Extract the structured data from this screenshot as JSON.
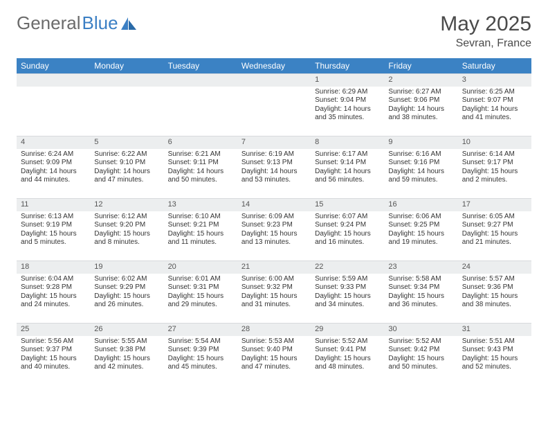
{
  "logo": {
    "text1": "General",
    "text2": "Blue"
  },
  "title": "May 2025",
  "location": "Sevran, France",
  "weekdays": [
    "Sunday",
    "Monday",
    "Tuesday",
    "Wednesday",
    "Thursday",
    "Friday",
    "Saturday"
  ],
  "colors": {
    "header_bg": "#3b82c4",
    "header_text": "#ffffff",
    "daynum_bg": "#eceeef",
    "body_text": "#333333",
    "title_text": "#4a4a4a",
    "logo_gray": "#6b6b6b",
    "logo_blue": "#3b7fc4"
  },
  "weeks": [
    [
      {
        "n": "",
        "sr": "",
        "ss": "",
        "dl": ""
      },
      {
        "n": "",
        "sr": "",
        "ss": "",
        "dl": ""
      },
      {
        "n": "",
        "sr": "",
        "ss": "",
        "dl": ""
      },
      {
        "n": "",
        "sr": "",
        "ss": "",
        "dl": ""
      },
      {
        "n": "1",
        "sr": "Sunrise: 6:29 AM",
        "ss": "Sunset: 9:04 PM",
        "dl": "Daylight: 14 hours and 35 minutes."
      },
      {
        "n": "2",
        "sr": "Sunrise: 6:27 AM",
        "ss": "Sunset: 9:06 PM",
        "dl": "Daylight: 14 hours and 38 minutes."
      },
      {
        "n": "3",
        "sr": "Sunrise: 6:25 AM",
        "ss": "Sunset: 9:07 PM",
        "dl": "Daylight: 14 hours and 41 minutes."
      }
    ],
    [
      {
        "n": "4",
        "sr": "Sunrise: 6:24 AM",
        "ss": "Sunset: 9:09 PM",
        "dl": "Daylight: 14 hours and 44 minutes."
      },
      {
        "n": "5",
        "sr": "Sunrise: 6:22 AM",
        "ss": "Sunset: 9:10 PM",
        "dl": "Daylight: 14 hours and 47 minutes."
      },
      {
        "n": "6",
        "sr": "Sunrise: 6:21 AM",
        "ss": "Sunset: 9:11 PM",
        "dl": "Daylight: 14 hours and 50 minutes."
      },
      {
        "n": "7",
        "sr": "Sunrise: 6:19 AM",
        "ss": "Sunset: 9:13 PM",
        "dl": "Daylight: 14 hours and 53 minutes."
      },
      {
        "n": "8",
        "sr": "Sunrise: 6:17 AM",
        "ss": "Sunset: 9:14 PM",
        "dl": "Daylight: 14 hours and 56 minutes."
      },
      {
        "n": "9",
        "sr": "Sunrise: 6:16 AM",
        "ss": "Sunset: 9:16 PM",
        "dl": "Daylight: 14 hours and 59 minutes."
      },
      {
        "n": "10",
        "sr": "Sunrise: 6:14 AM",
        "ss": "Sunset: 9:17 PM",
        "dl": "Daylight: 15 hours and 2 minutes."
      }
    ],
    [
      {
        "n": "11",
        "sr": "Sunrise: 6:13 AM",
        "ss": "Sunset: 9:19 PM",
        "dl": "Daylight: 15 hours and 5 minutes."
      },
      {
        "n": "12",
        "sr": "Sunrise: 6:12 AM",
        "ss": "Sunset: 9:20 PM",
        "dl": "Daylight: 15 hours and 8 minutes."
      },
      {
        "n": "13",
        "sr": "Sunrise: 6:10 AM",
        "ss": "Sunset: 9:21 PM",
        "dl": "Daylight: 15 hours and 11 minutes."
      },
      {
        "n": "14",
        "sr": "Sunrise: 6:09 AM",
        "ss": "Sunset: 9:23 PM",
        "dl": "Daylight: 15 hours and 13 minutes."
      },
      {
        "n": "15",
        "sr": "Sunrise: 6:07 AM",
        "ss": "Sunset: 9:24 PM",
        "dl": "Daylight: 15 hours and 16 minutes."
      },
      {
        "n": "16",
        "sr": "Sunrise: 6:06 AM",
        "ss": "Sunset: 9:25 PM",
        "dl": "Daylight: 15 hours and 19 minutes."
      },
      {
        "n": "17",
        "sr": "Sunrise: 6:05 AM",
        "ss": "Sunset: 9:27 PM",
        "dl": "Daylight: 15 hours and 21 minutes."
      }
    ],
    [
      {
        "n": "18",
        "sr": "Sunrise: 6:04 AM",
        "ss": "Sunset: 9:28 PM",
        "dl": "Daylight: 15 hours and 24 minutes."
      },
      {
        "n": "19",
        "sr": "Sunrise: 6:02 AM",
        "ss": "Sunset: 9:29 PM",
        "dl": "Daylight: 15 hours and 26 minutes."
      },
      {
        "n": "20",
        "sr": "Sunrise: 6:01 AM",
        "ss": "Sunset: 9:31 PM",
        "dl": "Daylight: 15 hours and 29 minutes."
      },
      {
        "n": "21",
        "sr": "Sunrise: 6:00 AM",
        "ss": "Sunset: 9:32 PM",
        "dl": "Daylight: 15 hours and 31 minutes."
      },
      {
        "n": "22",
        "sr": "Sunrise: 5:59 AM",
        "ss": "Sunset: 9:33 PM",
        "dl": "Daylight: 15 hours and 34 minutes."
      },
      {
        "n": "23",
        "sr": "Sunrise: 5:58 AM",
        "ss": "Sunset: 9:34 PM",
        "dl": "Daylight: 15 hours and 36 minutes."
      },
      {
        "n": "24",
        "sr": "Sunrise: 5:57 AM",
        "ss": "Sunset: 9:36 PM",
        "dl": "Daylight: 15 hours and 38 minutes."
      }
    ],
    [
      {
        "n": "25",
        "sr": "Sunrise: 5:56 AM",
        "ss": "Sunset: 9:37 PM",
        "dl": "Daylight: 15 hours and 40 minutes."
      },
      {
        "n": "26",
        "sr": "Sunrise: 5:55 AM",
        "ss": "Sunset: 9:38 PM",
        "dl": "Daylight: 15 hours and 42 minutes."
      },
      {
        "n": "27",
        "sr": "Sunrise: 5:54 AM",
        "ss": "Sunset: 9:39 PM",
        "dl": "Daylight: 15 hours and 45 minutes."
      },
      {
        "n": "28",
        "sr": "Sunrise: 5:53 AM",
        "ss": "Sunset: 9:40 PM",
        "dl": "Daylight: 15 hours and 47 minutes."
      },
      {
        "n": "29",
        "sr": "Sunrise: 5:52 AM",
        "ss": "Sunset: 9:41 PM",
        "dl": "Daylight: 15 hours and 48 minutes."
      },
      {
        "n": "30",
        "sr": "Sunrise: 5:52 AM",
        "ss": "Sunset: 9:42 PM",
        "dl": "Daylight: 15 hours and 50 minutes."
      },
      {
        "n": "31",
        "sr": "Sunrise: 5:51 AM",
        "ss": "Sunset: 9:43 PM",
        "dl": "Daylight: 15 hours and 52 minutes."
      }
    ]
  ]
}
